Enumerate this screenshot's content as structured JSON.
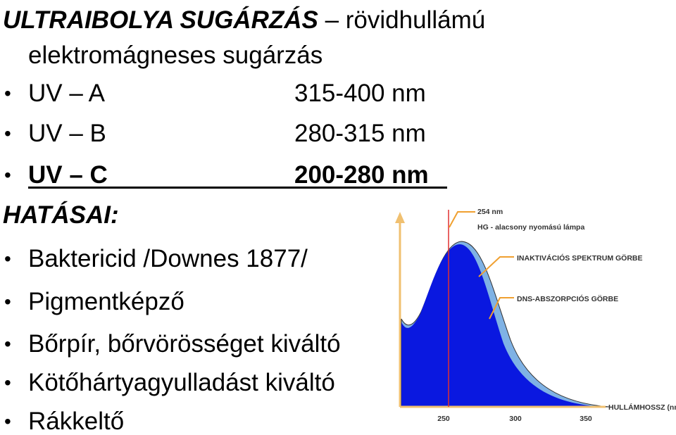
{
  "header": {
    "title": "ULTRAIBOLYA SUGÁRZÁS",
    "subtitle": "– rövidhullámú elektromágneses sugárzás"
  },
  "uv_types": [
    {
      "name": "UV – A",
      "range": "315-400 nm"
    },
    {
      "name": "UV – B",
      "range": "280-315 nm"
    },
    {
      "name": "UV – C",
      "range": "200-280 nm"
    }
  ],
  "effects_heading": "HATÁSAI:",
  "effects": [
    "Baktericid /Downes 1877/",
    "Pigmentképző",
    "Bőrpír, bőrvörösséget kiváltó",
    "Kötőhártyagyulladást kiváltó",
    "Rákkeltő"
  ],
  "figure": {
    "lamp_wavelength": "254 nm",
    "lamp": "HG - alacsony nyomású lámpa",
    "inactivation_curve": "INAKTIVÁCIÓS SPEKTRUM GÖRBE",
    "dna_curve": "DNS-ABSZORPCIÓS GÖRBE",
    "x_label": "HULLÁMHOSSZ (nm)",
    "xticks": [
      250,
      300,
      350
    ]
  }
}
